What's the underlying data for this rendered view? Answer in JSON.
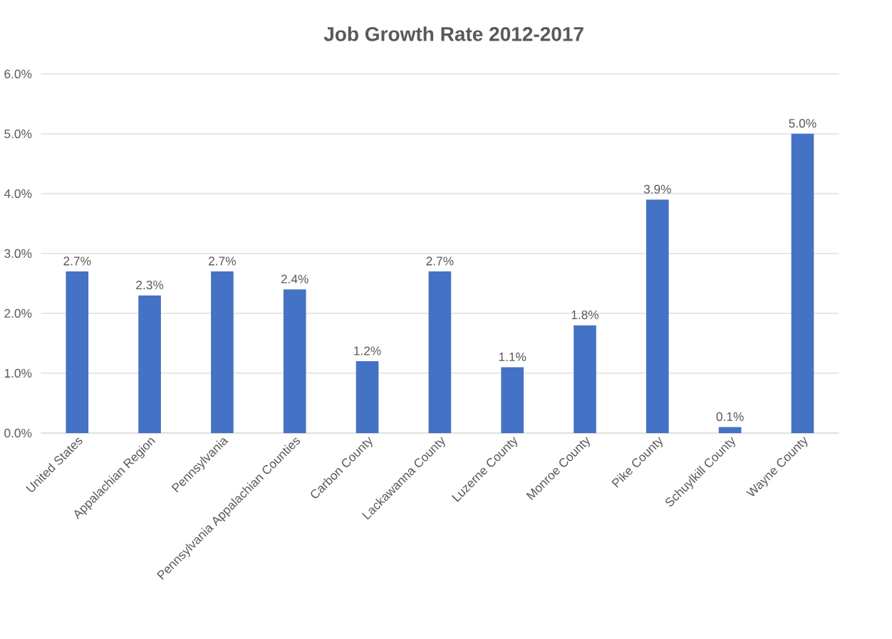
{
  "chart_data": {
    "type": "bar",
    "title": "Job Growth Rate 2012-2017",
    "categories": [
      "United States",
      "Appalachian Region",
      "Pennsylvania",
      "Pennsylvania Appalachian Counties",
      "Carbon County",
      "Lackawanna County",
      "Luzerne County",
      "Monroe County",
      "Pike County",
      "Schuylkill County",
      "Wayne County"
    ],
    "values": [
      2.7,
      2.3,
      2.7,
      2.4,
      1.2,
      2.7,
      1.1,
      1.8,
      3.9,
      0.1,
      5.0
    ],
    "value_labels": [
      "2.7%",
      "2.3%",
      "2.7%",
      "2.4%",
      "1.2%",
      "2.7%",
      "1.1%",
      "1.8%",
      "3.9%",
      "0.1%",
      "5.0%"
    ],
    "color": "#4472c4",
    "ylim": [
      0,
      6
    ],
    "yticks": [
      {
        "value": 0,
        "label": "0.0%"
      },
      {
        "value": 1,
        "label": "1.0%"
      },
      {
        "value": 2,
        "label": "2.0%"
      },
      {
        "value": 3,
        "label": "3.0%"
      },
      {
        "value": 4,
        "label": "4.0%"
      },
      {
        "value": 5,
        "label": "5.0%"
      },
      {
        "value": 6,
        "label": "6.0%"
      }
    ],
    "grid": "y"
  }
}
